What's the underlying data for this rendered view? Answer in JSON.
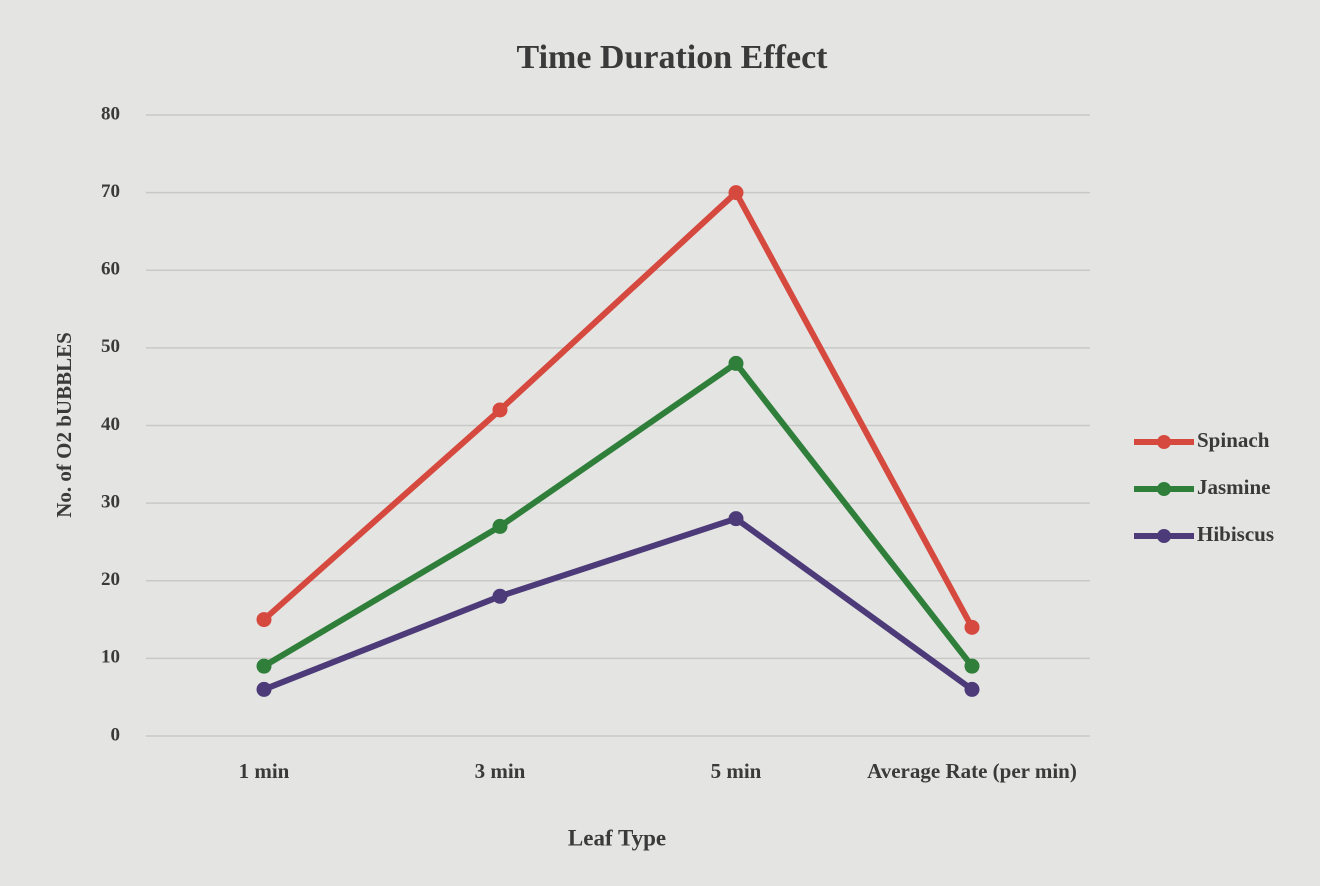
{
  "chart_data": {
    "type": "line",
    "title": "Time Duration Effect",
    "x_label": "Leaf Type",
    "y_label": "No. of O2 bUBBLES",
    "categories": [
      "1 min",
      "3 min",
      "5 min",
      "Average Rate (per min)"
    ],
    "series": [
      {
        "name": "Spinach",
        "color": "#d6493f",
        "values": [
          15,
          42,
          70,
          14
        ]
      },
      {
        "name": "Jasmine",
        "color": "#2f7f3b",
        "values": [
          9,
          27,
          48,
          9
        ]
      },
      {
        "name": "Hibiscus",
        "color": "#4c3b78",
        "values": [
          6,
          18,
          28,
          6
        ]
      }
    ],
    "ylim": [
      0,
      80
    ],
    "yticks": [
      0,
      10,
      20,
      30,
      40,
      50,
      60,
      70,
      80
    ],
    "grid": true,
    "legend": "right"
  }
}
